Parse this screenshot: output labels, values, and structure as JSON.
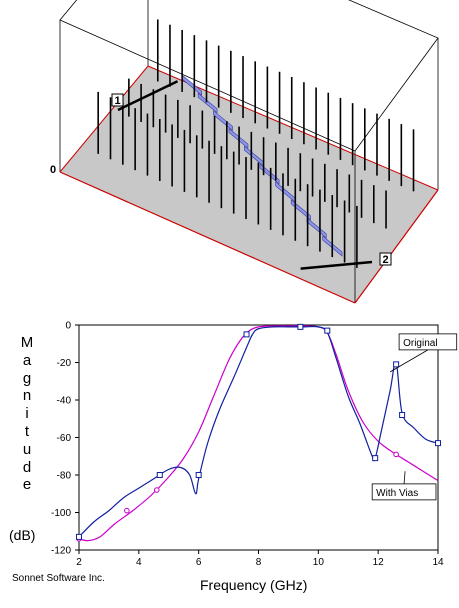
{
  "scene": {
    "port_labels": [
      "1",
      "2"
    ],
    "zero_label": "0",
    "colors": {
      "box_edge": "#000000",
      "substrate": "#c8c8c8",
      "ground_edge": "#cc0000",
      "conductor": "#8c96e6",
      "via": "#000000"
    }
  },
  "chart_data": {
    "type": "line",
    "xlabel": "Frequency (GHz)",
    "ylabel": "Magnitude",
    "ylabel_unit": "(dB)",
    "xlim": [
      2,
      14
    ],
    "ylim": [
      -120,
      0
    ],
    "xticks": [
      2,
      4,
      6,
      8,
      10,
      12,
      14
    ],
    "yticks": [
      0,
      -20,
      -40,
      -60,
      -80,
      -100,
      -120
    ],
    "grid": false,
    "series": [
      {
        "name": "Original",
        "color": "#cc00cc",
        "marker": "circle",
        "x": [
          2.0,
          2.3,
          2.7,
          3.2,
          3.8,
          4.4,
          5.0,
          5.5,
          6.0,
          6.5,
          7.0,
          7.4,
          7.7,
          8.0,
          8.5,
          9.0,
          9.5,
          10.0,
          10.3,
          10.6,
          11.0,
          11.5,
          12.0,
          12.5,
          13.0,
          13.5,
          14.0
        ],
        "y": [
          -114,
          -115,
          -113,
          -106,
          -99,
          -91,
          -81,
          -71,
          -57,
          -38,
          -19,
          -8,
          -3,
          -1,
          -0.5,
          -0.5,
          -0.5,
          -1,
          -4,
          -16,
          -35,
          -52,
          -62,
          -68,
          -73,
          -78,
          -83
        ],
        "markers_x": [
          2.0,
          3.6,
          4.6,
          12.6
        ],
        "markers_y": [
          -114,
          -99,
          -88,
          -69
        ]
      },
      {
        "name": "With Vias",
        "color": "#1020a0",
        "marker": "square",
        "x": [
          2.0,
          2.5,
          3.0,
          3.5,
          4.0,
          4.5,
          5.0,
          5.4,
          5.7,
          5.9,
          6.0,
          6.3,
          6.7,
          7.2,
          7.6,
          7.8,
          8.0,
          8.5,
          9.0,
          9.5,
          10.0,
          10.3,
          10.6,
          11.0,
          11.4,
          11.8,
          11.9,
          12.1,
          12.4,
          12.6,
          12.8,
          13.2,
          13.6,
          14.0
        ],
        "y": [
          -113,
          -105,
          -99,
          -92,
          -87,
          -82,
          -77,
          -76,
          -80,
          -90,
          -82,
          -63,
          -45,
          -27,
          -12,
          -5,
          -2,
          -1,
          -1,
          -1,
          -1,
          -4,
          -18,
          -38,
          -53,
          -70,
          -71,
          -57,
          -35,
          -20,
          -47,
          -55,
          -61,
          -63
        ],
        "markers_x": [
          2.0,
          4.7,
          6.0,
          7.6,
          9.4,
          10.3,
          11.9,
          12.6,
          12.8,
          14.0
        ],
        "markers_y": [
          -113,
          -80,
          -80,
          -5,
          -1,
          -3,
          -71,
          -21,
          -48,
          -63
        ]
      }
    ],
    "annotations": [
      {
        "text": "Original",
        "series": "Original",
        "label_x": 12.7,
        "label_y": -9,
        "point_x": 12.4,
        "point_y": -25
      },
      {
        "text": "With Vias",
        "series": "With Vias",
        "label_x": 11.8,
        "label_y": -89,
        "point_x": 12.9,
        "point_y": -78
      }
    ],
    "credit": "Sonnet Software Inc."
  }
}
